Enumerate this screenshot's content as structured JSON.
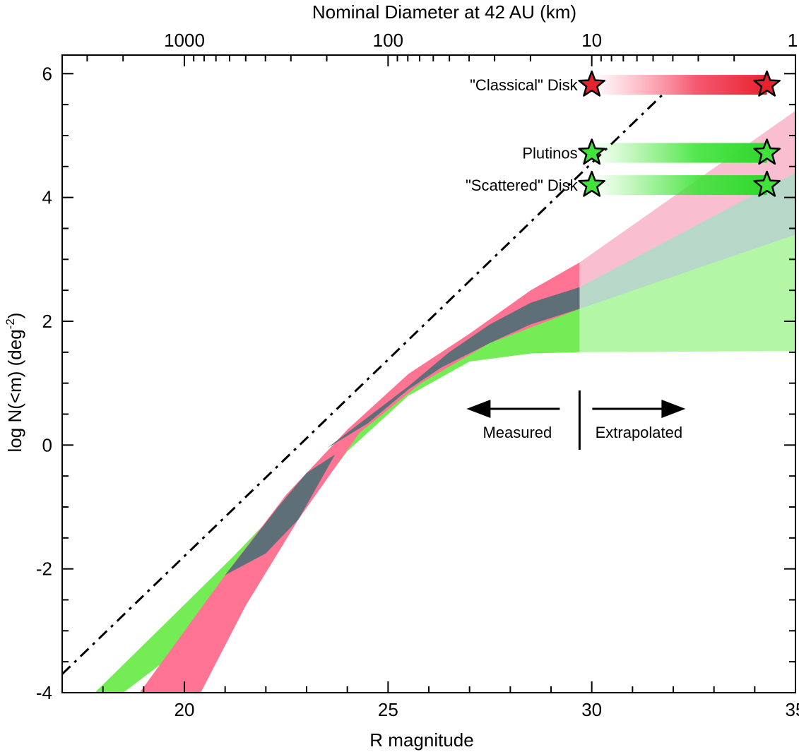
{
  "chart_data": {
    "type": "area",
    "xlabel": "R magnitude",
    "ylabel": "log N(<m)  (deg",
    "ylabel_sup": "-2",
    "ylabel_close": ")",
    "top_axis_label": "Nominal Diameter at 42 AU (km)",
    "xlim": [
      17,
      35
    ],
    "ylim": [
      -4,
      6.3
    ],
    "x_ticks": [
      20,
      25,
      30,
      35
    ],
    "y_ticks": [
      -4,
      -2,
      0,
      2,
      4,
      6
    ],
    "top_ticks": [
      {
        "label": "1000",
        "R": 20.0
      },
      {
        "label": "100",
        "R": 25.0
      },
      {
        "label": "10",
        "R": 30.0
      },
      {
        "label": "1",
        "R": 35.0
      }
    ],
    "measured_limit": 29.7,
    "reference_line": {
      "name": "dash-dot reference",
      "x": [
        17,
        31.8
      ],
      "y": [
        -3.7,
        5.7
      ]
    },
    "series": [
      {
        "name": "red band",
        "color": "#ff7492",
        "upper": [
          [
            18.9,
            -4
          ],
          [
            21,
            -2.1
          ],
          [
            22.5,
            -0.8
          ],
          [
            24,
            0.25
          ],
          [
            25.5,
            1.15
          ],
          [
            27,
            1.8
          ],
          [
            28.5,
            2.5
          ],
          [
            29.7,
            2.95
          ]
        ],
        "lower": [
          [
            20.4,
            -4
          ],
          [
            21.5,
            -2.6
          ],
          [
            22.8,
            -1.2
          ],
          [
            24.3,
            0.2
          ],
          [
            25.8,
            1.0
          ],
          [
            27.5,
            1.65
          ],
          [
            29.7,
            2.2
          ]
        ],
        "extrapolated_upper": [
          [
            29.7,
            2.95
          ],
          [
            35,
            5.4
          ]
        ],
        "extrapolated_lower": [
          [
            29.7,
            2.2
          ],
          [
            35,
            3.4
          ]
        ]
      },
      {
        "name": "green band",
        "color": "#74ec55",
        "upper": [
          [
            17.8,
            -4
          ],
          [
            19.5,
            -2.9
          ],
          [
            21.2,
            -1.8
          ],
          [
            22.8,
            -0.7
          ],
          [
            24.3,
            0.3
          ],
          [
            26,
            1.2
          ],
          [
            27.5,
            1.75
          ],
          [
            29.7,
            2.55
          ]
        ],
        "lower": [
          [
            18.5,
            -4
          ],
          [
            20.5,
            -3.0
          ],
          [
            22.5,
            -1.4
          ],
          [
            24,
            -0.1
          ],
          [
            25.5,
            0.8
          ],
          [
            27,
            1.35
          ],
          [
            28.5,
            1.48
          ],
          [
            29.7,
            1.5
          ]
        ],
        "extrapolated_upper": [
          [
            29.7,
            2.55
          ],
          [
            35,
            4.4
          ]
        ],
        "extrapolated_lower": [
          [
            29.7,
            1.5
          ],
          [
            35,
            1.52
          ]
        ]
      }
    ],
    "populations": [
      {
        "name": "\"Classical\" Disk",
        "color": "#e8212f",
        "y": 5.82,
        "star_R": [
          30.0,
          34.3
        ]
      },
      {
        "name": "Plutinos",
        "color": "#3fe33a",
        "y": 4.72,
        "star_R": [
          30.0,
          34.3
        ]
      },
      {
        "name": "\"Scattered\" Disk",
        "color": "#3fe33a",
        "y": 4.2,
        "star_R": [
          30.0,
          34.3
        ]
      }
    ],
    "annotations": {
      "measured": "Measured",
      "extrapolated": "Extrapolated"
    }
  }
}
